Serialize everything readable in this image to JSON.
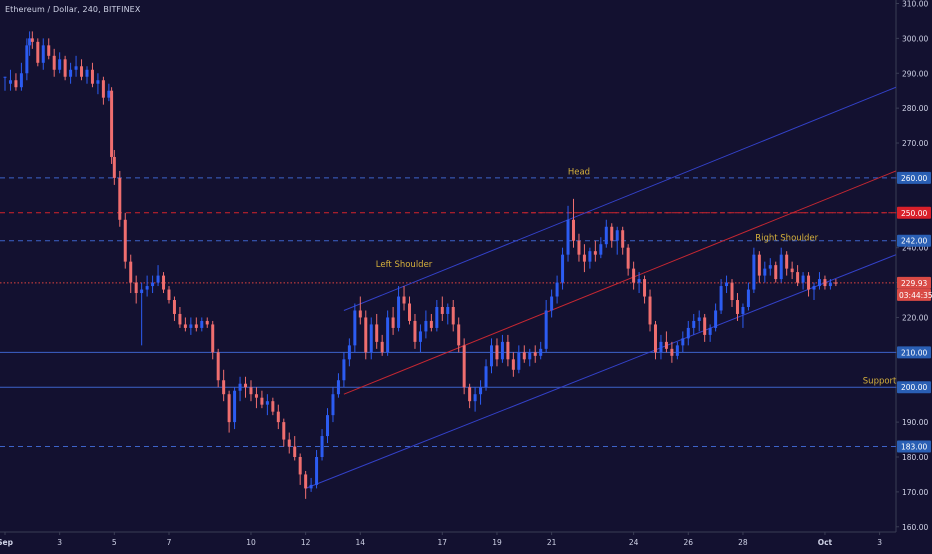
{
  "chart_data": {
    "type": "candlestick",
    "title": "Ethereum / Dollar, 240, BITFINEX",
    "y_axis": {
      "ticks": [
        310,
        300,
        290,
        280,
        270,
        260,
        250,
        240,
        230,
        220,
        210,
        200,
        190,
        180,
        170,
        160
      ],
      "tick_labels": [
        "310.00",
        "300.00",
        "290.00",
        "280.00",
        "270.00",
        "260.00",
        "250.00",
        "240.00",
        "230.00",
        "220.00",
        "210.00",
        "200.00",
        "190.00",
        "180.00",
        "170.00",
        "160.00"
      ],
      "ylim": [
        158.5,
        311
      ]
    },
    "x_axis": {
      "labels": [
        "Sep",
        "3",
        "5",
        "7",
        "10",
        "12",
        "14",
        "17",
        "19",
        "21",
        "24",
        "26",
        "28",
        "Oct",
        "3"
      ],
      "label_bold": [
        true,
        false,
        false,
        false,
        false,
        false,
        false,
        false,
        false,
        false,
        false,
        false,
        false,
        true,
        false
      ],
      "xlim_days": [
        1,
        33.6
      ],
      "label_days": [
        1,
        3,
        5,
        7,
        10,
        12,
        14,
        17,
        19,
        21,
        24,
        26,
        28,
        31,
        33
      ]
    },
    "candles": [
      [
        1.0,
        289,
        289,
        285,
        289
      ],
      [
        1.2,
        287,
        291,
        285,
        288
      ],
      [
        1.4,
        288,
        290,
        285,
        286
      ],
      [
        1.6,
        286,
        293,
        285,
        290
      ],
      [
        1.8,
        290,
        300,
        288,
        298
      ],
      [
        1.9,
        298,
        302,
        295,
        300
      ],
      [
        2.0,
        300,
        302,
        297,
        299
      ],
      [
        2.2,
        299,
        300,
        292,
        293
      ],
      [
        2.4,
        293,
        300,
        291,
        298
      ],
      [
        2.6,
        298,
        300,
        294,
        295
      ],
      [
        2.8,
        295,
        297,
        289,
        291
      ],
      [
        3.0,
        291,
        296,
        290,
        294
      ],
      [
        3.2,
        294,
        295,
        288,
        289
      ],
      [
        3.4,
        289,
        293,
        287,
        291
      ],
      [
        3.6,
        291,
        295,
        289,
        292
      ],
      [
        3.8,
        292,
        294,
        288,
        289
      ],
      [
        4.0,
        289,
        292,
        287,
        291
      ],
      [
        4.2,
        291,
        293,
        286,
        287
      ],
      [
        4.4,
        287,
        290,
        284,
        288
      ],
      [
        4.6,
        288,
        289,
        281,
        283
      ],
      [
        4.8,
        283,
        287,
        282,
        285
      ],
      [
        4.9,
        285,
        286,
        264,
        266
      ],
      [
        5.0,
        266,
        268,
        258,
        260
      ],
      [
        5.2,
        260,
        262,
        246,
        248
      ],
      [
        5.4,
        248,
        250,
        234,
        236
      ],
      [
        5.6,
        236,
        238,
        227,
        230
      ],
      [
        5.8,
        230,
        232,
        224,
        227
      ],
      [
        6.0,
        227,
        230,
        212,
        228
      ],
      [
        6.2,
        228,
        232,
        226,
        229
      ],
      [
        6.4,
        229,
        232,
        227,
        230
      ],
      [
        6.6,
        230,
        235,
        229,
        232
      ],
      [
        6.8,
        232,
        233,
        227,
        228
      ],
      [
        7.0,
        228,
        229,
        224,
        225
      ],
      [
        7.2,
        225,
        226,
        219,
        221
      ],
      [
        7.4,
        221,
        223,
        217,
        218
      ],
      [
        7.6,
        218,
        220,
        216,
        217
      ],
      [
        7.8,
        217,
        220,
        215,
        218
      ],
      [
        8.0,
        218,
        220,
        216,
        217
      ],
      [
        8.2,
        217,
        220,
        216,
        219
      ],
      [
        8.4,
        219,
        220,
        217,
        218
      ],
      [
        8.6,
        218,
        219,
        208,
        210
      ],
      [
        8.8,
        210,
        211,
        200,
        202
      ],
      [
        9.0,
        202,
        205,
        196,
        198
      ],
      [
        9.2,
        198,
        199,
        187,
        190
      ],
      [
        9.4,
        190,
        200,
        188,
        199
      ],
      [
        9.6,
        199,
        203,
        196,
        201
      ],
      [
        9.8,
        201,
        203,
        197,
        200
      ],
      [
        10.0,
        200,
        202,
        196,
        198
      ],
      [
        10.2,
        198,
        200,
        194,
        197
      ],
      [
        10.4,
        197,
        199,
        194,
        195
      ],
      [
        10.6,
        195,
        198,
        192,
        196
      ],
      [
        10.8,
        196,
        197,
        192,
        193
      ],
      [
        11.0,
        193,
        195,
        188,
        190
      ],
      [
        11.2,
        190,
        191,
        183,
        185
      ],
      [
        11.4,
        185,
        187,
        181,
        183
      ],
      [
        11.6,
        183,
        186,
        179,
        180
      ],
      [
        11.8,
        180,
        181,
        172,
        175
      ],
      [
        12.0,
        175,
        176,
        168,
        171
      ],
      [
        12.2,
        171,
        174,
        170,
        172
      ],
      [
        12.4,
        172,
        182,
        171,
        180
      ],
      [
        12.6,
        180,
        188,
        179,
        186
      ],
      [
        12.8,
        186,
        194,
        184,
        192
      ],
      [
        13.0,
        192,
        200,
        190,
        198
      ],
      [
        13.2,
        198,
        204,
        197,
        202
      ],
      [
        13.4,
        202,
        210,
        200,
        208
      ],
      [
        13.6,
        208,
        214,
        206,
        212
      ],
      [
        13.8,
        212,
        224,
        210,
        222
      ],
      [
        14.0,
        222,
        226,
        218,
        220
      ],
      [
        14.2,
        220,
        222,
        208,
        210
      ],
      [
        14.4,
        210,
        220,
        208,
        218
      ],
      [
        14.6,
        218,
        221,
        211,
        213
      ],
      [
        14.8,
        213,
        215,
        209,
        210
      ],
      [
        15.0,
        210,
        222,
        209,
        220
      ],
      [
        15.2,
        220,
        223,
        215,
        217
      ],
      [
        15.4,
        217,
        229,
        216,
        226
      ],
      [
        15.6,
        226,
        229,
        222,
        224
      ],
      [
        15.8,
        224,
        226,
        218,
        219
      ],
      [
        16.0,
        219,
        221,
        211,
        213
      ],
      [
        16.2,
        213,
        218,
        210,
        216
      ],
      [
        16.4,
        216,
        222,
        214,
        219
      ],
      [
        16.6,
        219,
        221,
        216,
        217
      ],
      [
        16.8,
        217,
        225,
        216,
        223
      ],
      [
        17.0,
        223,
        226,
        219,
        221
      ],
      [
        17.2,
        221,
        224,
        218,
        223
      ],
      [
        17.4,
        223,
        225,
        216,
        218
      ],
      [
        17.6,
        218,
        220,
        210,
        212
      ],
      [
        17.8,
        212,
        214,
        198,
        200
      ],
      [
        18.0,
        200,
        201,
        194,
        196
      ],
      [
        18.2,
        196,
        200,
        193,
        198
      ],
      [
        18.4,
        198,
        202,
        195,
        200
      ],
      [
        18.6,
        200,
        208,
        199,
        206
      ],
      [
        18.8,
        206,
        214,
        204,
        212
      ],
      [
        19.0,
        212,
        214,
        206,
        208
      ],
      [
        19.2,
        208,
        215,
        207,
        213
      ],
      [
        19.4,
        213,
        215,
        206,
        208
      ],
      [
        19.6,
        208,
        210,
        203,
        205
      ],
      [
        19.8,
        205,
        212,
        204,
        210
      ],
      [
        20.0,
        210,
        212,
        207,
        208
      ],
      [
        20.2,
        208,
        211,
        206,
        210
      ],
      [
        20.4,
        210,
        212,
        207,
        209
      ],
      [
        20.6,
        209,
        213,
        208,
        211
      ],
      [
        20.8,
        211,
        225,
        210,
        222
      ],
      [
        21.0,
        222,
        228,
        220,
        226
      ],
      [
        21.2,
        226,
        232,
        224,
        230
      ],
      [
        21.4,
        230,
        240,
        228,
        238
      ],
      [
        21.6,
        238,
        252,
        236,
        248
      ],
      [
        21.8,
        248,
        254,
        240,
        242
      ],
      [
        22.0,
        242,
        244,
        236,
        238
      ],
      [
        22.2,
        238,
        241,
        233,
        236
      ],
      [
        22.4,
        236,
        240,
        234,
        239
      ],
      [
        22.6,
        239,
        242,
        236,
        238
      ],
      [
        22.8,
        238,
        243,
        237,
        241
      ],
      [
        23.0,
        241,
        248,
        240,
        246
      ],
      [
        23.2,
        246,
        247,
        240,
        242
      ],
      [
        23.4,
        242,
        246,
        238,
        245
      ],
      [
        23.6,
        245,
        246,
        238,
        240
      ],
      [
        23.8,
        240,
        241,
        232,
        234
      ],
      [
        24.0,
        234,
        236,
        228,
        230
      ],
      [
        24.2,
        230,
        233,
        227,
        231
      ],
      [
        24.4,
        231,
        232,
        224,
        226
      ],
      [
        24.6,
        226,
        228,
        216,
        218
      ],
      [
        24.8,
        218,
        219,
        208,
        210
      ],
      [
        25.0,
        210,
        215,
        208,
        213
      ],
      [
        25.2,
        213,
        216,
        210,
        211
      ],
      [
        25.4,
        211,
        213,
        207,
        209
      ],
      [
        25.6,
        209,
        213,
        208,
        212
      ],
      [
        25.8,
        212,
        216,
        210,
        214
      ],
      [
        26.0,
        214,
        219,
        212,
        217
      ],
      [
        26.2,
        217,
        221,
        215,
        219
      ],
      [
        26.4,
        219,
        222,
        216,
        220
      ],
      [
        26.6,
        220,
        221,
        213,
        215
      ],
      [
        26.8,
        215,
        218,
        213,
        217
      ],
      [
        27.0,
        217,
        224,
        216,
        222
      ],
      [
        27.2,
        222,
        231,
        221,
        229
      ],
      [
        27.4,
        229,
        232,
        227,
        230
      ],
      [
        27.6,
        230,
        231,
        223,
        225
      ],
      [
        27.8,
        225,
        227,
        219,
        221
      ],
      [
        28.0,
        221,
        224,
        217,
        223
      ],
      [
        28.2,
        223,
        230,
        222,
        228
      ],
      [
        28.4,
        228,
        240,
        227,
        238
      ],
      [
        28.6,
        238,
        239,
        230,
        232
      ],
      [
        28.8,
        232,
        236,
        230,
        234
      ],
      [
        29.0,
        234,
        237,
        232,
        235
      ],
      [
        29.2,
        235,
        236,
        230,
        231
      ],
      [
        29.4,
        231,
        240,
        230,
        238
      ],
      [
        29.6,
        238,
        239,
        232,
        234
      ],
      [
        29.8,
        234,
        236,
        231,
        233
      ],
      [
        30.0,
        233,
        235,
        229,
        230
      ],
      [
        30.2,
        230,
        233,
        228,
        232
      ],
      [
        30.4,
        232,
        233,
        226,
        228
      ],
      [
        30.6,
        228,
        230,
        225,
        229
      ],
      [
        30.8,
        229,
        233,
        228,
        231
      ],
      [
        31.0,
        231,
        232,
        228,
        229
      ],
      [
        31.2,
        229,
        231,
        228,
        230
      ],
      [
        31.4,
        230,
        231,
        229,
        229.93
      ]
    ],
    "horizontal_levels": [
      {
        "value": 260,
        "style": "dashed",
        "color": "#3d63c9",
        "label": "260.00",
        "label_bg": "#2a5fb4"
      },
      {
        "value": 250,
        "style": "dashed",
        "color": "#d4232b",
        "label": "250.00",
        "label_bg": "#d9202a"
      },
      {
        "value": 242,
        "style": "dashed",
        "color": "#3d63c9",
        "label": "242.00",
        "label_bg": "#2a5fb4"
      },
      {
        "value": 229.93,
        "style": "dotted",
        "color": "#e0433f",
        "label": "229.93",
        "label_bg": "#d94a45"
      },
      {
        "value": 210,
        "style": "solid",
        "color": "#3d63c9",
        "label": "210.00",
        "label_bg": "#2a5fb4"
      },
      {
        "value": 200,
        "style": "solid",
        "color": "#3d63c9",
        "label": "200.00",
        "label_bg": "#2a5fb4"
      },
      {
        "value": 183,
        "style": "dashed",
        "color": "#3d63c9",
        "label": "183.00",
        "label_bg": "#2a5fb4"
      }
    ],
    "countdown_label": "03:44:35",
    "trend_lines": [
      {
        "name": "upper-channel",
        "color": "#3341c8",
        "from": [
          13.4,
          222
        ],
        "to": [
          33.6,
          286
        ]
      },
      {
        "name": "middle-channel",
        "color": "#c42732",
        "from": [
          13.4,
          198
        ],
        "to": [
          33.6,
          262
        ]
      },
      {
        "name": "lower-channel",
        "color": "#3341c8",
        "from": [
          12.0,
          171
        ],
        "to": [
          33.6,
          238
        ]
      },
      {
        "name": "head-level",
        "color": "#c42732",
        "dashed": true,
        "from": [
          20.0,
          250
        ],
        "to": [
          33.6,
          250
        ]
      }
    ],
    "annotations": [
      {
        "text": "Left Shoulder",
        "day": 15.6,
        "value": 234.5,
        "color": "#d6b13c"
      },
      {
        "text": "Head",
        "day": 22.0,
        "value": 261,
        "color": "#d6b13c"
      },
      {
        "text": "Right Shoulder",
        "day": 29.6,
        "value": 242,
        "color": "#d6b13c"
      },
      {
        "text": "Support",
        "day": 33.0,
        "value": 201,
        "color": "#d6b13c"
      }
    ],
    "colors": {
      "background": "#131130",
      "bull": "#2c5cf2",
      "bear": "#ef6e6f",
      "axis_text": "#cfd2e6",
      "axis_line": "#3a3d55"
    }
  }
}
